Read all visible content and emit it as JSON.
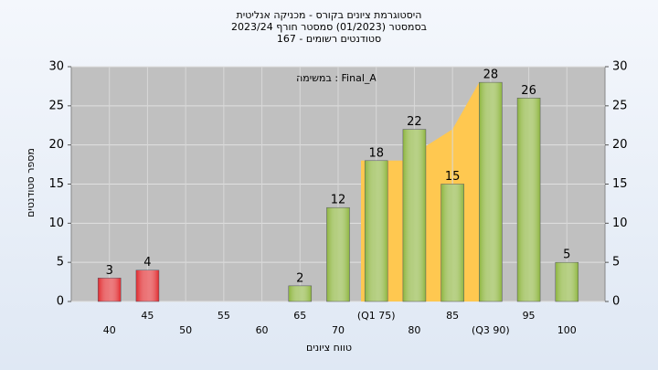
{
  "chart_data": {
    "type": "bar",
    "title": [
      "היסטוגרמת ציונים בקורס - מכניקה אנליטית",
      "בסמסטר  (01/2023)  סמסטר חורף 2023/24",
      "סטודנטים רשומים - 167"
    ],
    "annotation": "במשימה : Final_A",
    "x_label": "טווח ציונים",
    "y_label": "מספר סטודנטים",
    "categories": [
      "40",
      "45",
      "50",
      "55",
      "60",
      "65",
      "70",
      "(Q1 75)",
      "80",
      "85",
      "(Q3 90)",
      "95",
      "100"
    ],
    "values": [
      3,
      4,
      0,
      0,
      0,
      2,
      12,
      18,
      22,
      15,
      28,
      26,
      5
    ],
    "colors": [
      "#e0282c",
      "#e0282c",
      "#e0282c",
      "#e0282c",
      "#e0282c",
      "#8cb43c",
      "#8cb43c",
      "#8cb43c",
      "#8cb43c",
      "#8cb43c",
      "#8cb43c",
      "#8cb43c",
      "#8cb43c"
    ],
    "area": {
      "color": "#ffc850",
      "x": [
        73,
        73,
        78.5,
        85,
        88.5,
        91.5,
        91.5
      ],
      "values": [
        0,
        18,
        18,
        22,
        28,
        28,
        0
      ]
    },
    "xlim": [
      35,
      105
    ],
    "ylim": [
      0,
      30
    ],
    "yticks": [
      0,
      5,
      10,
      15,
      20,
      25,
      30
    ],
    "y2lim": [
      0,
      30
    ],
    "y2ticks": [
      0,
      5,
      10,
      15,
      20,
      25,
      30
    ],
    "grid": true
  }
}
